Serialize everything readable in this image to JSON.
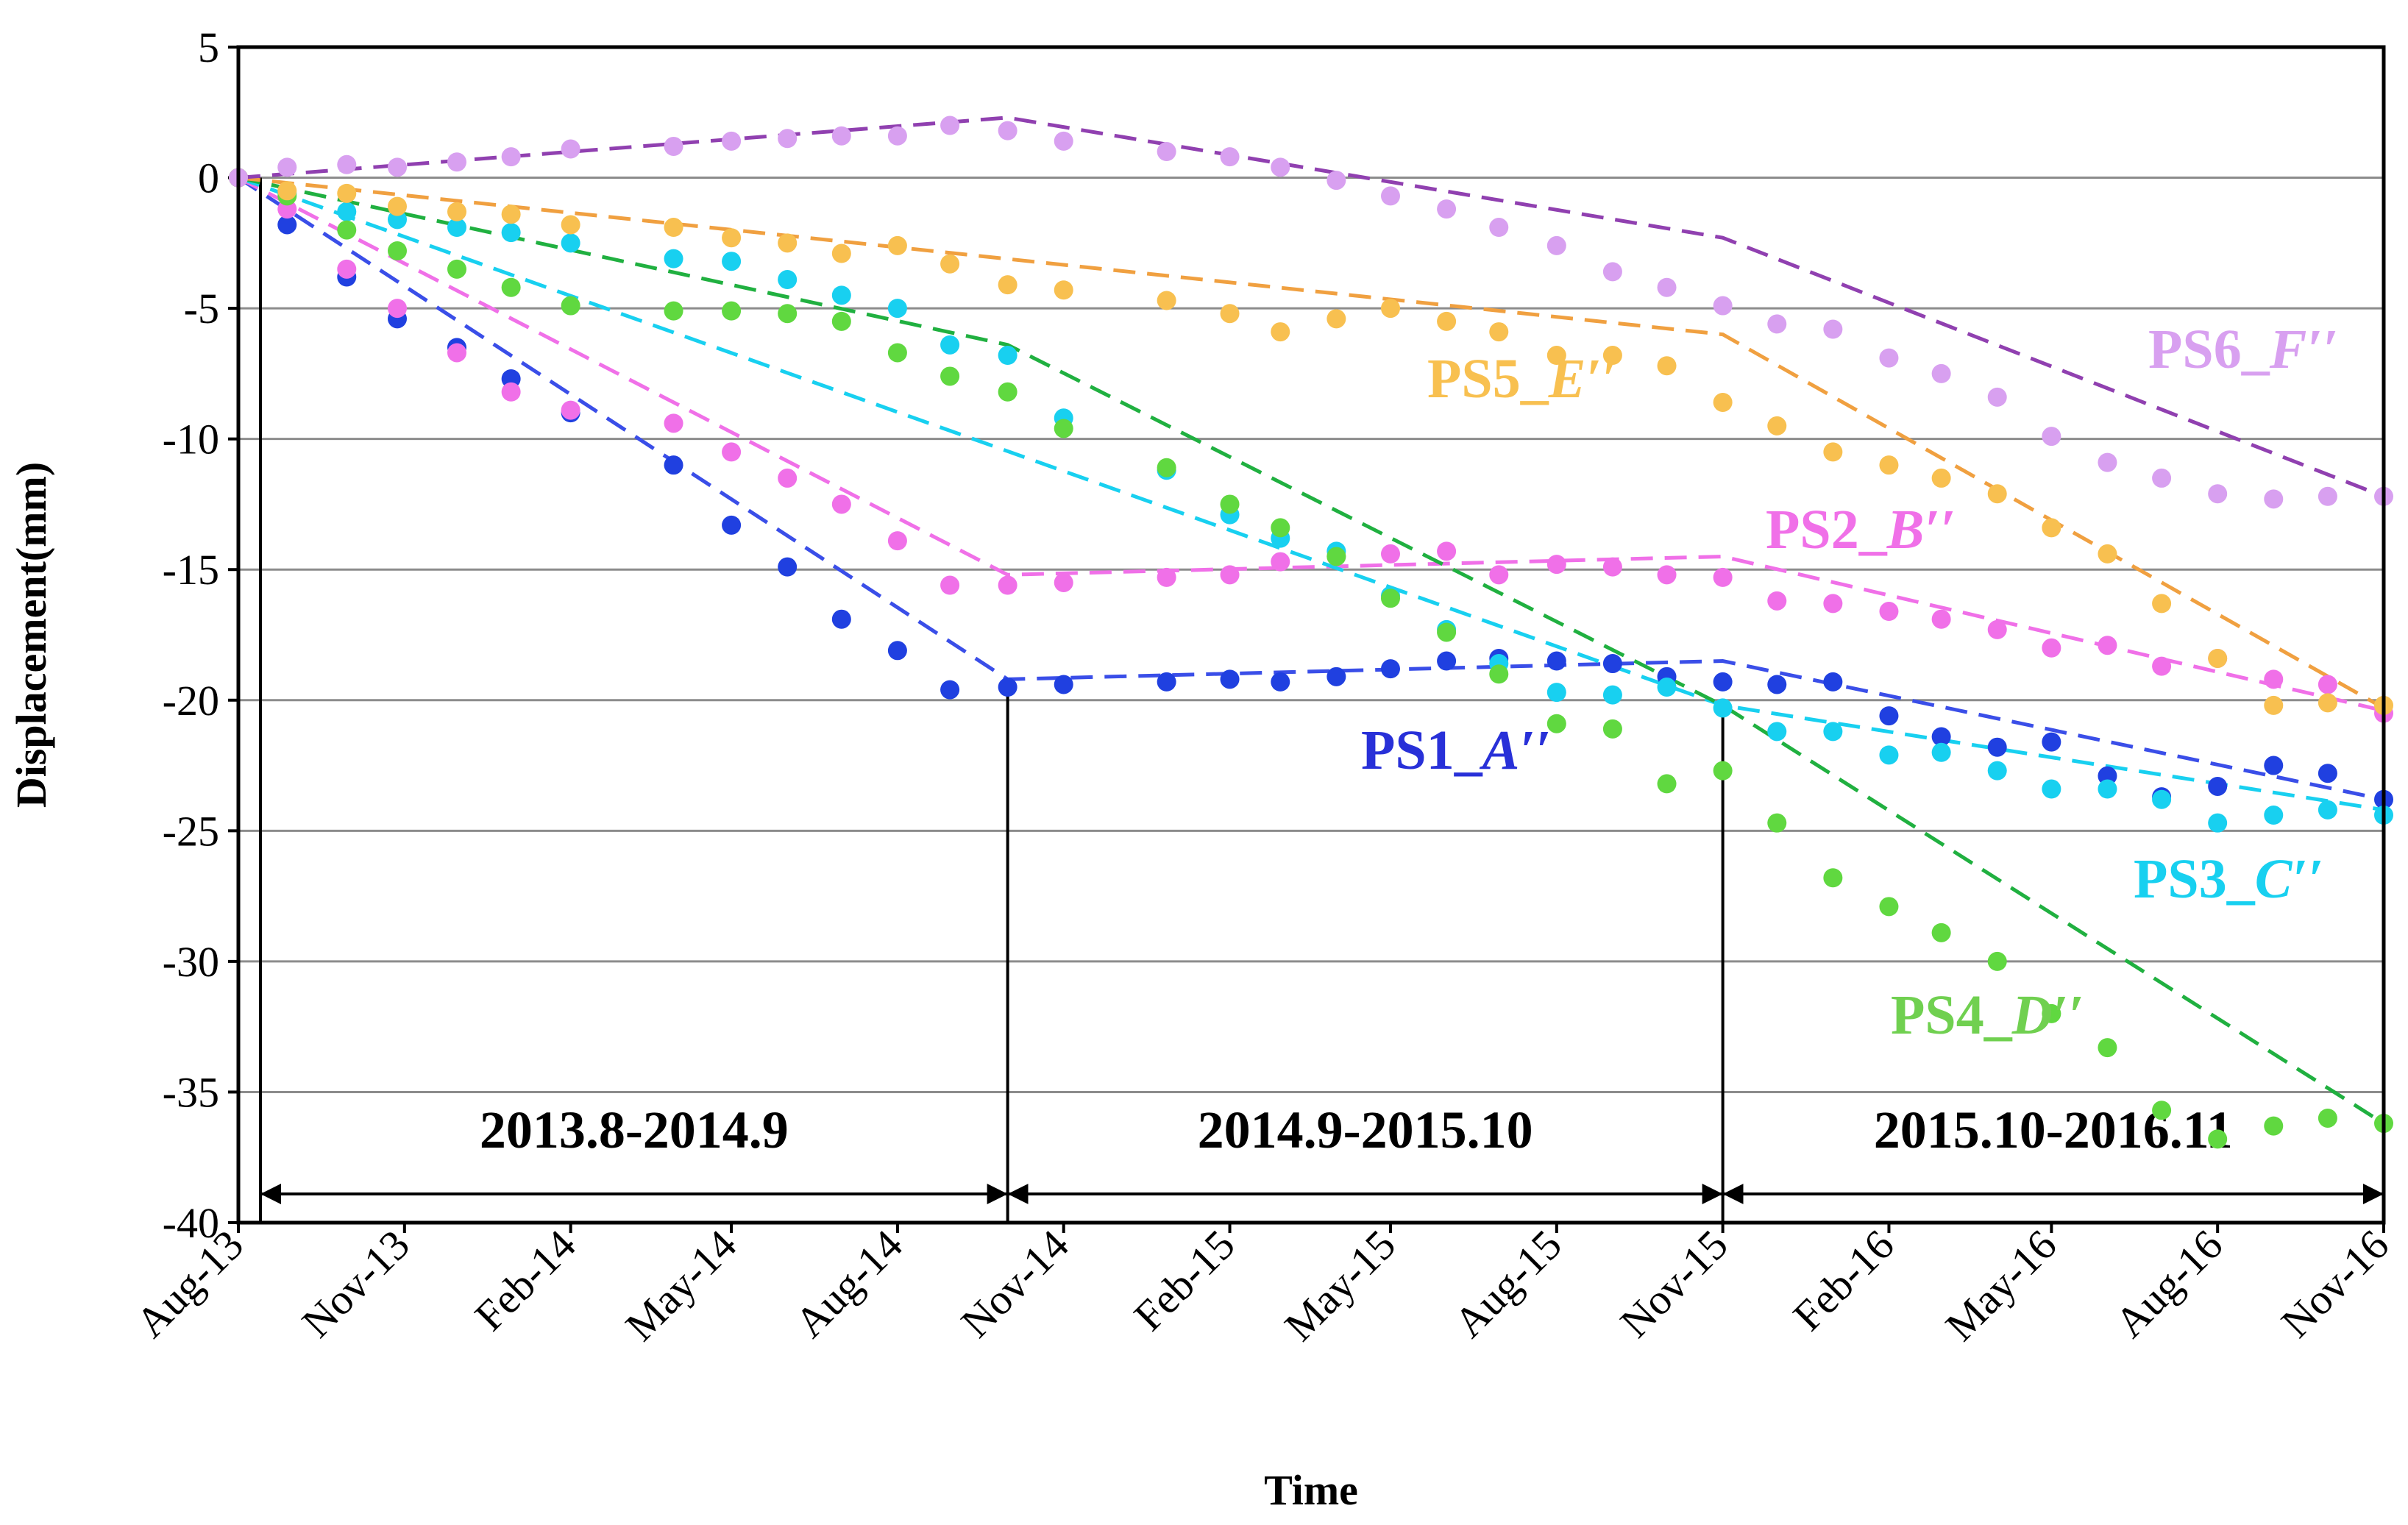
{
  "chart_data": {
    "type": "scatter",
    "title": "",
    "xlabel": "Time",
    "ylabel": "Displacement(mm)",
    "ylim": [
      -40,
      5
    ],
    "yticks": [
      5,
      0,
      -5,
      -10,
      -15,
      -20,
      -25,
      -30,
      -35,
      -40
    ],
    "xlim": [
      "2013-08-01",
      "2016-11-01"
    ],
    "xticks": [
      {
        "date": "2013-08-01",
        "label": "Aug-13"
      },
      {
        "date": "2013-11-01",
        "label": "Nov-13"
      },
      {
        "date": "2014-02-01",
        "label": "Feb-14"
      },
      {
        "date": "2014-05-01",
        "label": "May-14"
      },
      {
        "date": "2014-08-01",
        "label": "Aug-14"
      },
      {
        "date": "2014-11-01",
        "label": "Nov-14"
      },
      {
        "date": "2015-02-01",
        "label": "Feb-15"
      },
      {
        "date": "2015-05-01",
        "label": "May-15"
      },
      {
        "date": "2015-08-01",
        "label": "Aug-15"
      },
      {
        "date": "2015-11-01",
        "label": "Nov-15"
      },
      {
        "date": "2016-02-01",
        "label": "Feb-16"
      },
      {
        "date": "2016-05-01",
        "label": "May-16"
      },
      {
        "date": "2016-08-01",
        "label": "Aug-16"
      },
      {
        "date": "2016-11-01",
        "label": "Nov-16"
      }
    ],
    "grid": "horizontal",
    "x": [
      "2013-08-01",
      "2013-08-28",
      "2013-09-30",
      "2013-10-28",
      "2013-11-30",
      "2013-12-30",
      "2014-02-01",
      "2014-03-30",
      "2014-05-01",
      "2014-06-01",
      "2014-07-01",
      "2014-08-01",
      "2014-08-30",
      "2014-10-01",
      "2014-11-01",
      "2014-12-28",
      "2015-02-01",
      "2015-03-01",
      "2015-04-01",
      "2015-05-01",
      "2015-06-01",
      "2015-06-30",
      "2015-08-01",
      "2015-09-01",
      "2015-10-01",
      "2015-11-01",
      "2015-12-01",
      "2016-01-01",
      "2016-02-01",
      "2016-03-01",
      "2016-04-01",
      "2016-05-01",
      "2016-06-01",
      "2016-07-01",
      "2016-08-01",
      "2016-09-01",
      "2016-10-01",
      "2016-11-01"
    ],
    "series": [
      {
        "name": "PS1_A′′",
        "color": "#2040e0",
        "fit_color": "#3a4ee8",
        "values": [
          0,
          -1.8,
          -3.8,
          -5.4,
          -6.5,
          -7.7,
          -9,
          -11,
          -13.3,
          -14.9,
          -16.9,
          -18.1,
          -19.6,
          -19.5,
          -19.4,
          -19.3,
          -19.2,
          -19.3,
          -19.1,
          -18.8,
          -18.5,
          -18.4,
          -18.5,
          -18.6,
          -19.1,
          -19.3,
          -19.4,
          -19.3,
          -20.6,
          -21.4,
          -21.8,
          -21.6,
          -22.9,
          -23.7,
          -23.3,
          -22.5,
          -22.8,
          -23.8
        ],
        "fit": [
          [
            "2013-08-01",
            0
          ],
          [
            "2014-10-01",
            -19.2
          ],
          [
            "2015-11-01",
            -18.5
          ],
          [
            "2016-11-01",
            -23.8
          ]
        ]
      },
      {
        "name": "PS2_B′′",
        "color": "#f070e8",
        "fit_color": "#f070e8",
        "values": [
          0,
          -1.2,
          -3.5,
          -5,
          -6.7,
          -8.2,
          -8.9,
          -9.4,
          -10.5,
          -11.5,
          -12.5,
          -13.9,
          -15.6,
          -15.6,
          -15.5,
          -15.3,
          -15.2,
          -14.7,
          -14.5,
          -14.4,
          -14.3,
          -15.2,
          -14.8,
          -14.9,
          -15.2,
          -15.3,
          -16.2,
          -16.3,
          -16.6,
          -16.9,
          -17.3,
          -18,
          -17.9,
          -18.7,
          -18.4,
          -19.2,
          -19.4,
          -20.5
        ],
        "fit": [
          [
            "2013-08-01",
            0
          ],
          [
            "2014-10-01",
            -15.2
          ],
          [
            "2015-11-01",
            -14.5
          ],
          [
            "2016-11-01",
            -20.4
          ]
        ]
      },
      {
        "name": "PS3_C′′",
        "color": "#18d0f0",
        "fit_color": "#18d0f0",
        "values": [
          0,
          -0.6,
          -1.3,
          -1.6,
          -1.9,
          -2.1,
          -2.5,
          -3.1,
          -3.2,
          -3.9,
          -4.5,
          -5,
          -6.4,
          -6.8,
          -9.2,
          -11.2,
          -12.9,
          -13.8,
          -14.3,
          -16,
          -17.3,
          -18.6,
          -19.7,
          -19.8,
          -19.5,
          -20.3,
          -21.2,
          -21.2,
          -22.1,
          -22,
          -22.7,
          -23.4,
          -23.4,
          -23.8,
          -24.7,
          -24.4,
          -24.2,
          -24.4
        ],
        "fit": [
          [
            "2013-08-01",
            0
          ],
          [
            "2015-11-01",
            -20.2
          ],
          [
            "2016-11-01",
            -24.2
          ]
        ]
      },
      {
        "name": "PS4_D′′",
        "color": "#60d840",
        "fit_color": "#20b040",
        "values": [
          0,
          -0.7,
          -2,
          -2.8,
          -3.5,
          -4.2,
          -4.9,
          -5.1,
          -5.1,
          -5.2,
          -5.5,
          -6.7,
          -7.6,
          -8.2,
          -9.6,
          -11.1,
          -12.5,
          -13.4,
          -14.5,
          -16.1,
          -17.4,
          -19,
          -20.9,
          -21.1,
          -23.2,
          -22.7,
          -24.7,
          -26.8,
          -27.9,
          -28.9,
          -30,
          -32,
          -33.3,
          -35.7,
          -36.8,
          -36.3,
          -36,
          -36.2
        ],
        "fit": [
          [
            "2013-08-01",
            0
          ],
          [
            "2014-10-01",
            -6.4
          ],
          [
            "2015-11-01",
            -20.2
          ],
          [
            "2016-11-01",
            -36.2
          ]
        ]
      },
      {
        "name": "PS5_E′′",
        "color": "#f8c050",
        "fit_color": "#f0a040",
        "values": [
          0,
          -0.5,
          -0.6,
          -1.1,
          -1.3,
          -1.4,
          -1.8,
          -1.9,
          -2.3,
          -2.5,
          -2.9,
          -2.6,
          -3.3,
          -4.1,
          -4.3,
          -4.7,
          -5.2,
          -5.9,
          -5.4,
          -5,
          -5.5,
          -5.9,
          -6.8,
          -6.8,
          -7.2,
          -8.6,
          -9.5,
          -10.5,
          -11,
          -11.5,
          -12.1,
          -13.4,
          -14.4,
          -16.3,
          -18.4,
          -20.2,
          -20.1,
          -20.2
        ],
        "fit": [
          [
            "2013-08-01",
            0
          ],
          [
            "2015-11-01",
            -6
          ],
          [
            "2016-11-01",
            -20.3
          ]
        ]
      },
      {
        "name": "PS6_F′′",
        "color": "#d8a0f0",
        "fit_color": "#9040b0",
        "values": [
          0,
          0.4,
          0.5,
          0.4,
          0.6,
          0.8,
          1.1,
          1.2,
          1.4,
          1.5,
          1.6,
          1.6,
          2,
          1.8,
          1.4,
          1,
          0.8,
          0.4,
          -0.1,
          -0.7,
          -1.2,
          -1.9,
          -2.6,
          -3.6,
          -4.2,
          -4.9,
          -5.6,
          -5.8,
          -6.9,
          -7.5,
          -8.4,
          -9.9,
          -10.9,
          -11.5,
          -12.1,
          -12.3,
          -12.2,
          -12.2
        ],
        "fit": [
          [
            "2013-08-01",
            0
          ],
          [
            "2014-10-01",
            2.3
          ],
          [
            "2015-11-01",
            -2.3
          ],
          [
            "2016-11-01",
            -12.2
          ]
        ]
      }
    ],
    "series_labels": [
      {
        "text": "PS1_",
        "italic": "A′′",
        "series": 0,
        "color": "#2830d8"
      },
      {
        "text": "PS2_",
        "italic": "B′′",
        "series": 1,
        "color": "#f070e8"
      },
      {
        "text": "PS3_",
        "italic": "C′′",
        "series": 2,
        "color": "#18d0f0"
      },
      {
        "text": "PS4_",
        "italic": "D′′",
        "series": 3,
        "color": "#70d050"
      },
      {
        "text": "PS5_",
        "italic": "E′′",
        "series": 4,
        "color": "#f8c050"
      },
      {
        "text": "PS6_",
        "italic": "F′′",
        "series": 5,
        "color": "#d8a0f0"
      }
    ],
    "periods": [
      {
        "label": "2013.8-2014.9",
        "start": "2013-08-01",
        "end": "2014-10-01"
      },
      {
        "label": "2014.9-2015.10",
        "start": "2014-10-01",
        "end": "2015-11-01"
      },
      {
        "label": "2015.10-2016.11",
        "start": "2015-11-01",
        "end": "2016-11-01"
      }
    ]
  }
}
